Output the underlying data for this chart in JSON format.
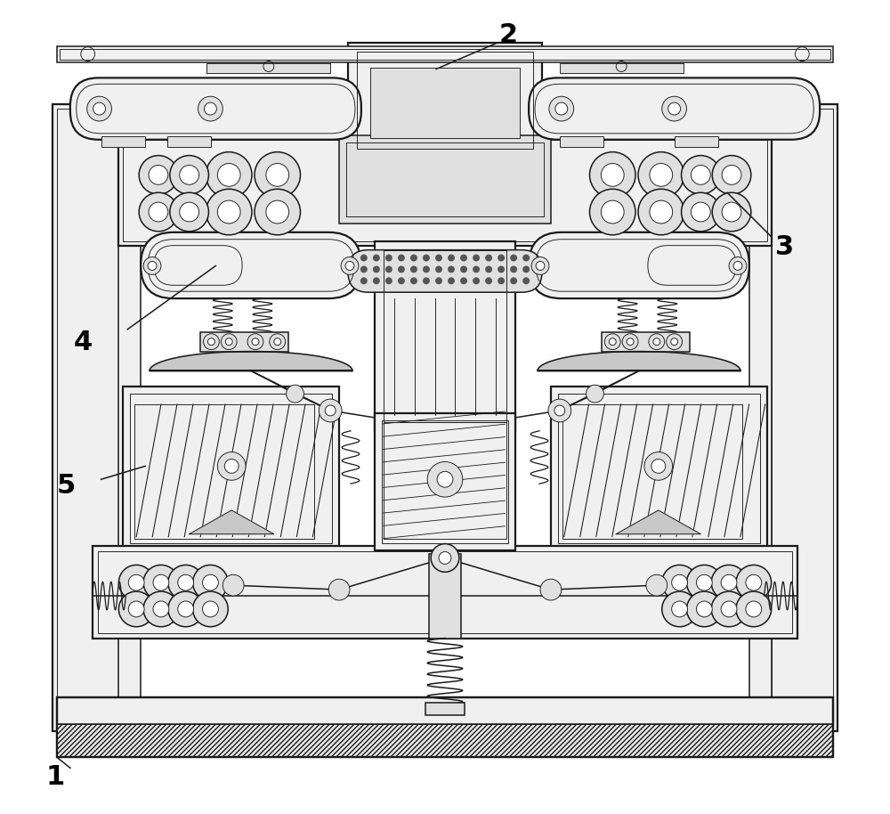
{
  "bg_color": "#ffffff",
  "line_color": "#1a1a1a",
  "figsize": [
    10.0,
    9.14
  ],
  "dpi": 100,
  "label_fontsize": 22,
  "lw_thick": 1.6,
  "lw_main": 1.1,
  "lw_thin": 0.65
}
